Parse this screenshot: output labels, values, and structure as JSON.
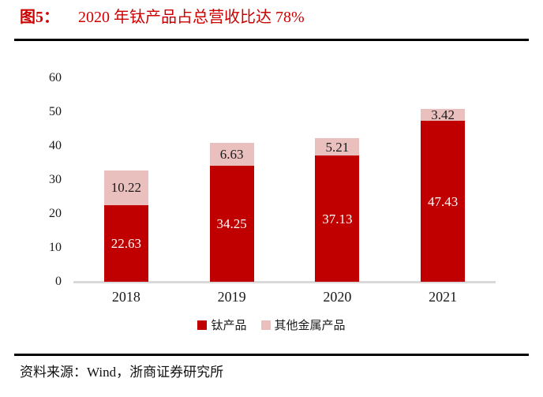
{
  "figure": {
    "title_prefix": "图5：",
    "title_text": "2020 年钛产品占总营收比达 78%",
    "source_text": "资料来源：Wind，浙商证券研究所"
  },
  "colors": {
    "title_red": "#CC0000",
    "series_red": "#C00000",
    "series_pink": "#EAC0BF",
    "axis_line_gray": "#D9D9D9",
    "rule_black": "#000000"
  },
  "legend": [
    {
      "label": "钛产品",
      "color": "#C00000"
    },
    {
      "label": "其他金属产品",
      "color": "#EAC0BF"
    }
  ],
  "chart_data": {
    "type": "bar",
    "stacked": true,
    "title": "2020 年钛产品占总营收比达 78%",
    "categories": [
      "2018",
      "2019",
      "2020",
      "2021"
    ],
    "series": [
      {
        "name": "钛产品",
        "color": "#C00000",
        "label_color": "#FFFFFF",
        "values": [
          22.63,
          34.25,
          37.13,
          47.43
        ]
      },
      {
        "name": "其他金属产品",
        "color": "#EAC0BF",
        "label_color": "#1A1A1A",
        "values": [
          10.22,
          6.63,
          5.21,
          3.42
        ]
      }
    ],
    "xlabel": "",
    "ylabel": "",
    "ylim": [
      0,
      60
    ],
    "yticks": [
      0,
      10,
      20,
      30,
      40,
      50,
      60
    ],
    "grid": false,
    "legend_position": "bottom"
  }
}
